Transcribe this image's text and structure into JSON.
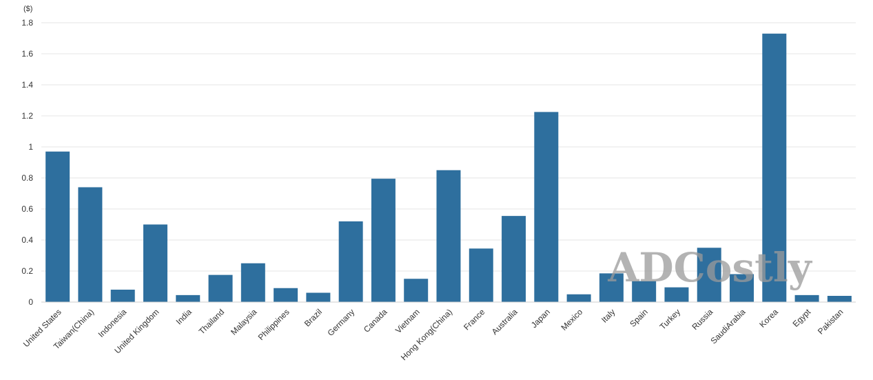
{
  "chart_data": {
    "type": "bar",
    "unit_label": "($)",
    "categories": [
      "United States",
      "Taiwan(China)",
      "Indonesia",
      "United Kingdom",
      "India",
      "Thailand",
      "Malaysia",
      "Philippines",
      "Brazil",
      "Germany",
      "Canada",
      "Vietnam",
      "Hong Kong(China)",
      "France",
      "Australia",
      "Japan",
      "Mexico",
      "Italy",
      "Spain",
      "Turkey",
      "Russia",
      "SaudiArabia",
      "Korea",
      "Egypt",
      "Pakistan"
    ],
    "values": [
      0.97,
      0.74,
      0.08,
      0.5,
      0.045,
      0.175,
      0.25,
      0.09,
      0.06,
      0.52,
      0.795,
      0.15,
      0.85,
      0.345,
      0.555,
      1.225,
      0.05,
      0.185,
      0.135,
      0.095,
      0.35,
      0.18,
      1.73,
      0.045,
      0.04
    ],
    "ylim": [
      0,
      1.8
    ],
    "yticks": [
      "0",
      "0.2",
      "0.4",
      "0.6",
      "0.8",
      "1",
      "1.2",
      "1.4",
      "1.6",
      "1.8"
    ],
    "grid": true,
    "colors": {
      "bar": "#2e6f9e",
      "grid": "#e6e6e6",
      "axis": "#cccccc"
    }
  },
  "watermark": "ADCostly"
}
